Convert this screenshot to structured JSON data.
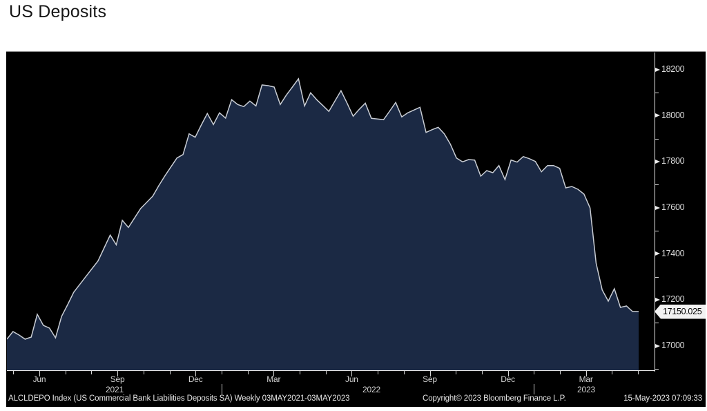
{
  "page": {
    "title": "US Deposits"
  },
  "chart": {
    "last_value_label": "17150.025",
    "footer": {
      "left": "ALCLDEPO Index (US Commercial Bank Liabilities Deposits SA)  Weekly 03MAY2021-03MAY2023",
      "copyright": "Copyright© 2023 Bloomberg Finance L.P.",
      "timestamp": "15-May-2023 07:09:33"
    },
    "colors": {
      "page_background": "#ffffff",
      "title_text": "#161616",
      "chart_background": "#000000",
      "area_fill": "#1b2944",
      "line": "#c9cdd4",
      "axis": "#e9e9e9",
      "tick_label": "#dcdcdc",
      "last_value_bg": "#f2f2f2",
      "last_value_text": "#000000"
    }
  },
  "chart_data": {
    "type": "area",
    "title": "US Deposits",
    "frequency": "Weekly",
    "date_range": "03MAY2021-03MAY2023",
    "start_date": "2021-05-03",
    "end_date": "2023-05-03",
    "grid": "off",
    "legend": "none",
    "ylim": [
      16895,
      18275
    ],
    "y_ticks_major": [
      17000,
      17200,
      17400,
      17600,
      17800,
      18000,
      18200
    ],
    "y_ticks_minor": [
      16900,
      17100,
      17300,
      17500,
      17700,
      17900,
      18100
    ],
    "x_month_labels": [
      "Jun",
      "Sep",
      "Dec",
      "Mar",
      "Jun",
      "Sep",
      "Dec",
      "Mar"
    ],
    "x_year_labels": [
      "2021",
      "2022",
      "2023"
    ],
    "last_value": 17150.025,
    "series": [
      {
        "name": "ALCLDEPO Index (US Commercial Bank Liabilities Deposits SA)",
        "values": [
          17030,
          17063,
          17048,
          17030,
          17039,
          17138,
          17090,
          17078,
          17036,
          17129,
          17180,
          17234,
          17268,
          17302,
          17336,
          17370,
          17426,
          17482,
          17440,
          17546,
          17515,
          17556,
          17597,
          17624,
          17651,
          17697,
          17739,
          17778,
          17817,
          17832,
          17922,
          17907,
          17960,
          18010,
          17962,
          18013,
          17990,
          18070,
          18049,
          18040,
          18064,
          18043,
          18134,
          18131,
          18125,
          18049,
          18090,
          18125,
          18161,
          18043,
          18100,
          18070,
          18045,
          18019,
          18064,
          18109,
          18055,
          17998,
          18028,
          18055,
          17989,
          17986,
          17983,
          18020,
          18058,
          17995,
          18013,
          18025,
          18037,
          17928,
          17940,
          17950,
          17922,
          17877,
          17817,
          17800,
          17810,
          17808,
          17738,
          17762,
          17753,
          17784,
          17723,
          17808,
          17799,
          17823,
          17814,
          17802,
          17757,
          17784,
          17784,
          17772,
          17687,
          17693,
          17681,
          17660,
          17600,
          17360,
          17244,
          17195,
          17249,
          17168,
          17174,
          17150,
          17150.025
        ]
      }
    ]
  }
}
